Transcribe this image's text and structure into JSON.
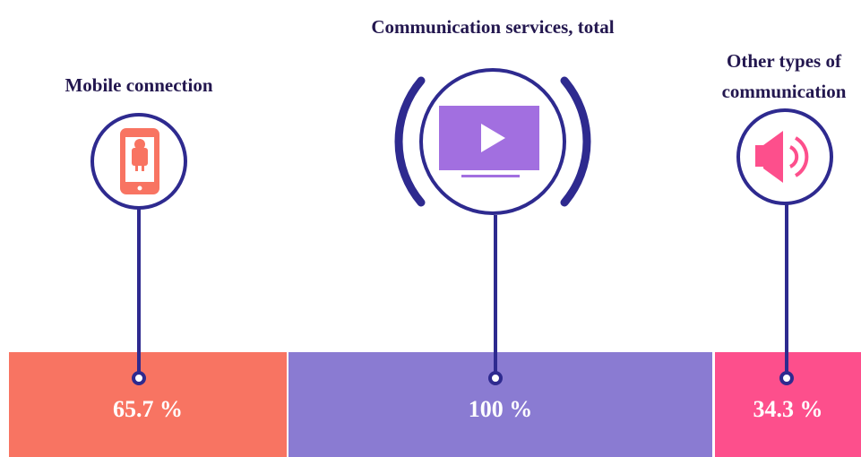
{
  "items": [
    {
      "label": "Mobile connection",
      "value": "65.7 %"
    },
    {
      "label": "Communication services, total",
      "value": "100 %"
    },
    {
      "label": "Other types of communication",
      "value": "34.3 %"
    }
  ]
}
